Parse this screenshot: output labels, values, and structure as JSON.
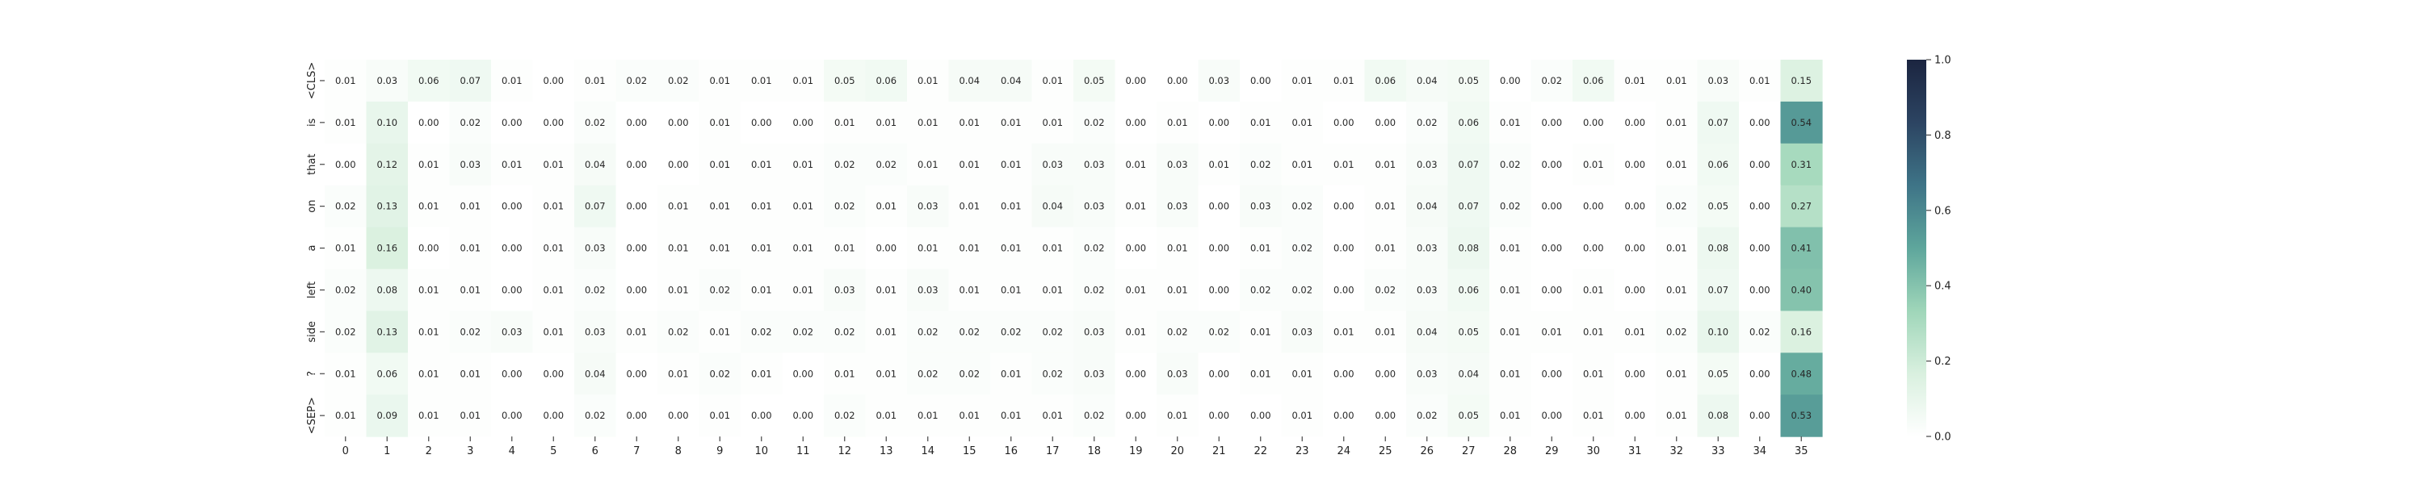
{
  "chart_data": {
    "type": "heatmap",
    "title": "",
    "xlabel": "",
    "ylabel": "",
    "x_categories": [
      "0",
      "1",
      "2",
      "3",
      "4",
      "5",
      "6",
      "7",
      "8",
      "9",
      "10",
      "11",
      "12",
      "13",
      "14",
      "15",
      "16",
      "17",
      "18",
      "19",
      "20",
      "21",
      "22",
      "23",
      "24",
      "25",
      "26",
      "27",
      "28",
      "29",
      "30",
      "31",
      "32",
      "33",
      "34",
      "35"
    ],
    "y_categories": [
      "<CLS>",
      "is",
      "that",
      "on",
      "a",
      "left",
      "side",
      "?",
      "<SEP>"
    ],
    "values": [
      [
        0.01,
        0.03,
        0.06,
        0.07,
        0.01,
        0.0,
        0.01,
        0.02,
        0.02,
        0.01,
        0.01,
        0.01,
        0.05,
        0.06,
        0.01,
        0.04,
        0.04,
        0.01,
        0.05,
        0.0,
        0.0,
        0.03,
        0.0,
        0.01,
        0.01,
        0.06,
        0.04,
        0.05,
        0.0,
        0.02,
        0.06,
        0.01,
        0.01,
        0.03,
        0.01,
        0.15
      ],
      [
        0.01,
        0.1,
        0.0,
        0.02,
        0.0,
        0.0,
        0.02,
        0.0,
        0.0,
        0.01,
        0.0,
        0.0,
        0.01,
        0.01,
        0.01,
        0.01,
        0.01,
        0.01,
        0.02,
        0.0,
        0.01,
        0.0,
        0.01,
        0.01,
        0.0,
        0.0,
        0.02,
        0.06,
        0.01,
        0.0,
        0.0,
        0.0,
        0.01,
        0.07,
        0.0,
        0.54
      ],
      [
        0.0,
        0.12,
        0.01,
        0.03,
        0.01,
        0.01,
        0.04,
        0.0,
        0.0,
        0.01,
        0.01,
        0.01,
        0.02,
        0.02,
        0.01,
        0.01,
        0.01,
        0.03,
        0.03,
        0.01,
        0.03,
        0.01,
        0.02,
        0.01,
        0.01,
        0.01,
        0.03,
        0.07,
        0.02,
        0.0,
        0.01,
        0.0,
        0.01,
        0.06,
        0.0,
        0.31
      ],
      [
        0.02,
        0.13,
        0.01,
        0.01,
        0.0,
        0.01,
        0.07,
        0.0,
        0.01,
        0.01,
        0.01,
        0.01,
        0.02,
        0.01,
        0.03,
        0.01,
        0.01,
        0.04,
        0.03,
        0.01,
        0.03,
        0.0,
        0.03,
        0.02,
        0.0,
        0.01,
        0.04,
        0.07,
        0.02,
        0.0,
        0.0,
        0.0,
        0.02,
        0.05,
        0.0,
        0.27
      ],
      [
        0.01,
        0.16,
        0.0,
        0.01,
        0.0,
        0.01,
        0.03,
        0.0,
        0.01,
        0.01,
        0.01,
        0.01,
        0.01,
        0.0,
        0.01,
        0.01,
        0.01,
        0.01,
        0.02,
        0.0,
        0.01,
        0.0,
        0.01,
        0.02,
        0.0,
        0.01,
        0.03,
        0.08,
        0.01,
        0.0,
        0.0,
        0.0,
        0.01,
        0.08,
        0.0,
        0.41
      ],
      [
        0.02,
        0.08,
        0.01,
        0.01,
        0.0,
        0.01,
        0.02,
        0.0,
        0.01,
        0.02,
        0.01,
        0.01,
        0.03,
        0.01,
        0.03,
        0.01,
        0.01,
        0.01,
        0.02,
        0.01,
        0.01,
        0.0,
        0.02,
        0.02,
        0.0,
        0.02,
        0.03,
        0.06,
        0.01,
        0.0,
        0.01,
        0.0,
        0.01,
        0.07,
        0.0,
        0.4
      ],
      [
        0.02,
        0.13,
        0.01,
        0.02,
        0.03,
        0.01,
        0.03,
        0.01,
        0.02,
        0.01,
        0.02,
        0.02,
        0.02,
        0.01,
        0.02,
        0.02,
        0.02,
        0.02,
        0.03,
        0.01,
        0.02,
        0.02,
        0.01,
        0.03,
        0.01,
        0.01,
        0.04,
        0.05,
        0.01,
        0.01,
        0.01,
        0.01,
        0.02,
        0.1,
        0.02,
        0.16
      ],
      [
        0.01,
        0.06,
        0.01,
        0.01,
        0.0,
        0.0,
        0.04,
        0.0,
        0.01,
        0.02,
        0.01,
        0.0,
        0.01,
        0.01,
        0.02,
        0.02,
        0.01,
        0.02,
        0.03,
        0.0,
        0.03,
        0.0,
        0.01,
        0.01,
        0.0,
        0.0,
        0.03,
        0.04,
        0.01,
        0.0,
        0.01,
        0.0,
        0.01,
        0.05,
        0.0,
        0.48
      ],
      [
        0.01,
        0.09,
        0.01,
        0.01,
        0.0,
        0.0,
        0.02,
        0.0,
        0.0,
        0.01,
        0.0,
        0.0,
        0.02,
        0.01,
        0.01,
        0.01,
        0.01,
        0.01,
        0.02,
        0.0,
        0.01,
        0.0,
        0.0,
        0.01,
        0.0,
        0.0,
        0.02,
        0.05,
        0.01,
        0.0,
        0.01,
        0.0,
        0.01,
        0.08,
        0.0,
        0.53
      ]
    ],
    "value_format": "0.00",
    "colorbar": {
      "range": [
        0.0,
        1.0
      ],
      "ticks": [
        "0.0",
        "0.2",
        "0.4",
        "0.6",
        "0.8",
        "1.0"
      ],
      "colormap": [
        "#ffffff",
        "#d9f0df",
        "#9fd6b9",
        "#5ea69c",
        "#3e7487",
        "#2c4462",
        "#1b2540"
      ]
    }
  }
}
